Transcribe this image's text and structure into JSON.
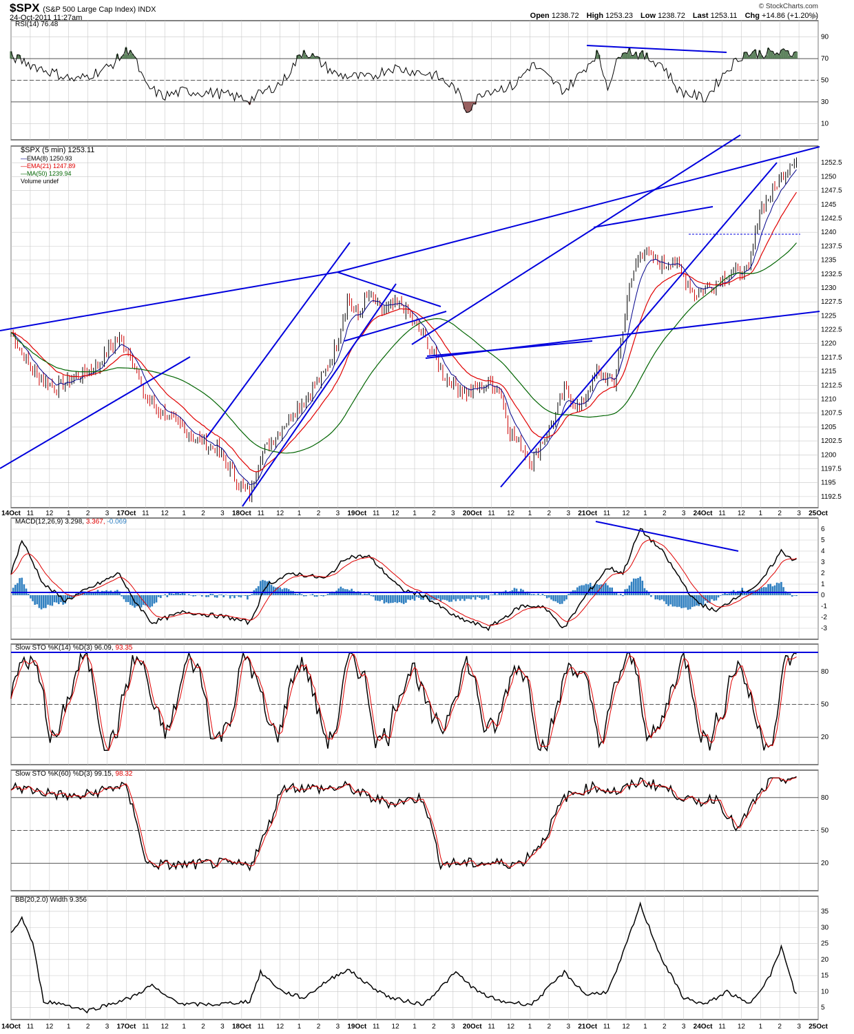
{
  "header": {
    "symbol": "$SPX",
    "name": "(S&P 500 Large Cap Index) INDX",
    "datetime": "24-Oct-2011 11:27am",
    "brand": "© StockCharts.com",
    "open_label": "Open",
    "open": "1238.72",
    "high_label": "High",
    "high": "1253.23",
    "low_label": "Low",
    "low": "1238.72",
    "last_label": "Last",
    "last": "1253.11",
    "chg_label": "Chg",
    "chg": "+14.86 (+1.20%)"
  },
  "colors": {
    "price_up": "#000000",
    "price_down": "#cc0000",
    "ema8": "#00008b",
    "ema21": "#e00000",
    "ma50": "#006400",
    "trendline": "#0000dd",
    "macd_hist": "#2f7fc0",
    "rsi_fill": "#2f5f2f",
    "grid": "#c8c8c8"
  },
  "x_ticks": [
    "14Oct",
    "11",
    "12",
    "1",
    "2",
    "3",
    "17Oct",
    "11",
    "12",
    "1",
    "2",
    "3",
    "18Oct",
    "11",
    "12",
    "1",
    "2",
    "3",
    "19Oct",
    "11",
    "12",
    "1",
    "2",
    "3",
    "20Oct",
    "11",
    "12",
    "1",
    "2",
    "3",
    "21Oct",
    "11",
    "12",
    "1",
    "2",
    "3",
    "24Oct",
    "11",
    "12",
    "1",
    "2",
    "3",
    "25Oct"
  ],
  "legends": {
    "rsi": "RSI(14) 76.48",
    "price": "$SPX (5 min) 1253.11",
    "ema8": "EMA(8) 1250.93",
    "ema21": "EMA(21) 1247.89",
    "ma50": "MA(50) 1239.94",
    "volume": "Volume undef",
    "macd": "MACD(12,26,9) 3.298,",
    "macd_sig": "3.367,",
    "macd_hist": "-0.069",
    "sto14": "Slow STO %K(14) %D(3) 96.09,",
    "sto14_d": "93.35",
    "sto60": "Slow STO %K(60) %D(3) 99.15,",
    "sto60_d": "98.32",
    "bbw": "BB(20,2.0) Width 9.356"
  },
  "chart_data": [
    {
      "type": "line",
      "panel": "RSI(14)",
      "y_ticks": [
        10,
        30,
        50,
        70,
        90
      ],
      "ylim": [
        0,
        100
      ],
      "last": 76.48,
      "series": [
        {
          "name": "RSI(14)",
          "keypoints": [
            [
              0,
              72
            ],
            [
              15,
              60
            ],
            [
              30,
              50
            ],
            [
              45,
              62
            ],
            [
              55,
              80
            ],
            [
              62,
              45
            ],
            [
              70,
              35
            ],
            [
              80,
              40
            ],
            [
              95,
              38
            ],
            [
              110,
              32
            ],
            [
              125,
              48
            ],
            [
              135,
              78
            ],
            [
              150,
              55
            ],
            [
              165,
              52
            ],
            [
              175,
              62
            ],
            [
              195,
              55
            ],
            [
              205,
              42
            ],
            [
              210,
              22
            ],
            [
              218,
              40
            ],
            [
              232,
              45
            ],
            [
              240,
              65
            ],
            [
              255,
              40
            ],
            [
              262,
              55
            ],
            [
              270,
              75
            ],
            [
              275,
              45
            ],
            [
              282,
              80
            ],
            [
              300,
              65
            ],
            [
              308,
              40
            ],
            [
              320,
              33
            ],
            [
              330,
              60
            ],
            [
              338,
              75
            ]
          ]
        }
      ]
    },
    {
      "type": "line",
      "panel": "$SPX (5 min) price",
      "y_ticks": [
        1192.5,
        1195,
        1197.5,
        1200,
        1202.5,
        1205,
        1207.5,
        1210,
        1212.5,
        1215,
        1217.5,
        1220,
        1222.5,
        1225,
        1227.5,
        1230,
        1232.5,
        1235,
        1237.5,
        1240,
        1242.5,
        1245,
        1247.5,
        1250,
        1252.5
      ],
      "ylim": [
        1191,
        1255
      ],
      "last": 1253.11,
      "series": [
        {
          "name": "$SPX (5 min)",
          "keypoints": [
            [
              0,
              1222
            ],
            [
              10,
              1215
            ],
            [
              20,
              1212
            ],
            [
              30,
              1214
            ],
            [
              40,
              1216
            ],
            [
              45,
              1219
            ],
            [
              50,
              1221
            ],
            [
              55,
              1218
            ],
            [
              60,
              1212
            ],
            [
              65,
              1209
            ],
            [
              75,
              1206
            ],
            [
              85,
              1203
            ],
            [
              95,
              1201
            ],
            [
              105,
              1195
            ],
            [
              110,
              1193
            ],
            [
              115,
              1200
            ],
            [
              125,
              1205
            ],
            [
              135,
              1210
            ],
            [
              145,
              1215
            ],
            [
              150,
              1220
            ],
            [
              155,
              1228
            ],
            [
              160,
              1225
            ],
            [
              165,
              1229
            ],
            [
              170,
              1226
            ],
            [
              180,
              1227
            ],
            [
              185,
              1224
            ],
            [
              192,
              1220
            ],
            [
              200,
              1214
            ],
            [
              210,
              1211
            ],
            [
              220,
              1213
            ],
            [
              225,
              1212
            ],
            [
              230,
              1204
            ],
            [
              240,
              1199
            ],
            [
              250,
              1206
            ],
            [
              255,
              1212
            ],
            [
              262,
              1208
            ],
            [
              270,
              1215
            ],
            [
              278,
              1213
            ],
            [
              285,
              1230
            ],
            [
              290,
              1237
            ],
            [
              300,
              1234
            ],
            [
              305,
              1235
            ],
            [
              315,
              1229
            ],
            [
              325,
              1231
            ],
            [
              332,
              1233
            ],
            [
              340,
              1233
            ],
            [
              345,
              1244
            ],
            [
              352,
              1248
            ],
            [
              360,
              1253
            ]
          ]
        },
        {
          "name": "EMA(8)",
          "last": 1250.93
        },
        {
          "name": "EMA(21)",
          "last": 1247.89
        },
        {
          "name": "MA(50)",
          "last": 1239.94
        }
      ]
    },
    {
      "type": "line",
      "panel": "MACD(12,26,9)",
      "y_ticks": [
        -3,
        -2,
        -1,
        0,
        1,
        2,
        3,
        4,
        5,
        6
      ],
      "ylim": [
        -3.5,
        6.5
      ],
      "values": {
        "macd": 3.298,
        "signal": 3.367,
        "histogram": -0.069
      },
      "series": [
        {
          "name": "MACD",
          "keypoints": [
            [
              0,
              2
            ],
            [
              5,
              5
            ],
            [
              15,
              1
            ],
            [
              25,
              -0.5
            ],
            [
              40,
              1
            ],
            [
              50,
              2
            ],
            [
              55,
              0
            ],
            [
              65,
              -2.5
            ],
            [
              80,
              -1.5
            ],
            [
              100,
              -2
            ],
            [
              110,
              -2.5
            ],
            [
              118,
              1
            ],
            [
              130,
              2
            ],
            [
              145,
              1.5
            ],
            [
              155,
              3.5
            ],
            [
              165,
              3.5
            ],
            [
              180,
              0.5
            ],
            [
              190,
              0
            ],
            [
              205,
              -2
            ],
            [
              220,
              -3
            ],
            [
              235,
              -1
            ],
            [
              245,
              -1
            ],
            [
              255,
              -3
            ],
            [
              265,
              0
            ],
            [
              275,
              2.5
            ],
            [
              282,
              2
            ],
            [
              290,
              6
            ],
            [
              300,
              4
            ],
            [
              315,
              -0.5
            ],
            [
              325,
              -1.5
            ],
            [
              335,
              0
            ],
            [
              345,
              1
            ],
            [
              355,
              4
            ],
            [
              360,
              3.3
            ]
          ]
        }
      ]
    },
    {
      "type": "line",
      "panel": "Slow STO %K(14) %D(3)",
      "y_ticks": [
        20,
        50,
        80
      ],
      "ylim": [
        0,
        100
      ],
      "values": {
        "k": 96.09,
        "d": 93.35
      }
    },
    {
      "type": "line",
      "panel": "Slow STO %K(60) %D(3)",
      "y_ticks": [
        20,
        50,
        80
      ],
      "ylim": [
        0,
        100
      ],
      "values": {
        "k": 99.15,
        "d": 98.32
      }
    },
    {
      "type": "line",
      "panel": "BB(20,2.0) Width",
      "y_ticks": [
        5,
        10,
        15,
        20,
        25,
        30,
        35
      ],
      "ylim": [
        3,
        38
      ],
      "last": 9.356,
      "series": [
        {
          "name": "BB Width",
          "keypoints": [
            [
              0,
              28
            ],
            [
              5,
              33
            ],
            [
              10,
              25
            ],
            [
              15,
              7
            ],
            [
              25,
              6
            ],
            [
              35,
              4
            ],
            [
              45,
              6
            ],
            [
              55,
              8
            ],
            [
              65,
              12
            ],
            [
              70,
              9
            ],
            [
              80,
              6
            ],
            [
              95,
              6
            ],
            [
              110,
              7
            ],
            [
              115,
              16
            ],
            [
              125,
              10
            ],
            [
              135,
              8
            ],
            [
              145,
              13
            ],
            [
              155,
              17
            ],
            [
              165,
              12
            ],
            [
              175,
              8
            ],
            [
              190,
              6
            ],
            [
              205,
              16
            ],
            [
              215,
              10
            ],
            [
              225,
              7
            ],
            [
              240,
              6
            ],
            [
              255,
              16
            ],
            [
              265,
              9
            ],
            [
              275,
              10
            ],
            [
              280,
              18
            ],
            [
              290,
              37
            ],
            [
              300,
              20
            ],
            [
              310,
              8
            ],
            [
              320,
              6
            ],
            [
              330,
              10
            ],
            [
              340,
              6
            ],
            [
              350,
              15
            ],
            [
              355,
              24
            ],
            [
              362,
              8
            ],
            [
              366,
              9.356
            ]
          ]
        }
      ]
    }
  ]
}
